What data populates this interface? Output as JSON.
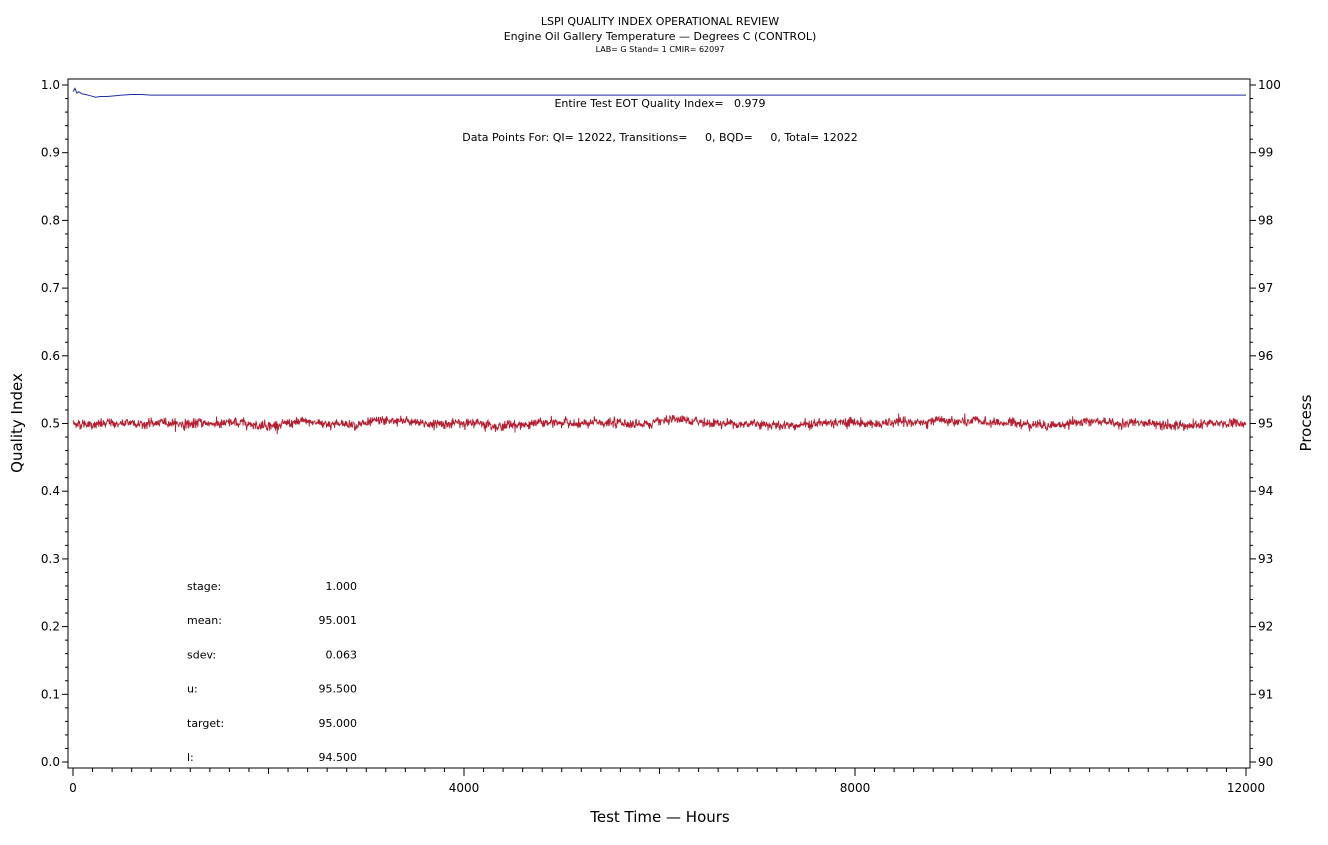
{
  "chart_data": {
    "type": "line",
    "title": "LSPI QUALITY INDEX OPERATIONAL REVIEW",
    "subtitle": "Engine Oil Gallery Temperature — Degrees C (CONTROL)",
    "subsubtitle": "LAB= G Stand= 1 CMIR= 62097",
    "xlabel": "Test Time — Hours",
    "ylabel_left": "Quality Index",
    "ylabel_right": "Process",
    "xlim": [
      0,
      12000
    ],
    "ylim_left": [
      0.0,
      1.0
    ],
    "ylim_right": [
      90,
      100
    ],
    "x_ticks": [
      "0",
      "4000",
      "8000",
      "12000"
    ],
    "y_left_ticks": [
      "0.0",
      "0.1",
      "0.2",
      "0.3",
      "0.4",
      "0.5",
      "0.6",
      "0.7",
      "0.8",
      "0.9",
      "1.0"
    ],
    "y_right_ticks": [
      "90",
      "91",
      "92",
      "93",
      "94",
      "95",
      "96",
      "97",
      "98",
      "99",
      "100"
    ],
    "annotations": {
      "quality_index": "Entire Test EOT Quality Index=   0.979",
      "data_points": "Data Points For: QI= 12022, Transitions=     0, BQD=     0, Total= 12022"
    },
    "stats": [
      {
        "label": "stage:",
        "value": "1.000"
      },
      {
        "label": "mean:",
        "value": "95.001"
      },
      {
        "label": "sdev:",
        "value": "0.063"
      },
      {
        "label": "u:",
        "value": "95.500"
      },
      {
        "label": "target:",
        "value": "95.000"
      },
      {
        "label": "l:",
        "value": "94.500"
      }
    ],
    "series": [
      {
        "axis": "left",
        "color": "#1f2fa8",
        "points": [
          [
            0,
            0.99
          ],
          [
            20,
            0.995
          ],
          [
            40,
            0.988
          ],
          [
            60,
            0.99
          ],
          [
            90,
            0.987
          ],
          [
            130,
            0.986
          ],
          [
            180,
            0.984
          ],
          [
            230,
            0.982
          ],
          [
            280,
            0.983
          ],
          [
            350,
            0.983
          ],
          [
            420,
            0.984
          ],
          [
            500,
            0.985
          ],
          [
            600,
            0.986
          ],
          [
            700,
            0.986
          ],
          [
            800,
            0.985
          ],
          [
            1500,
            0.985
          ],
          [
            3000,
            0.985
          ],
          [
            6000,
            0.985
          ],
          [
            9000,
            0.985
          ],
          [
            12000,
            0.985
          ]
        ]
      },
      {
        "axis": "right",
        "color": "#b51c2e",
        "mean": 95.001,
        "sdev": 0.063,
        "n_points": 12022
      }
    ]
  }
}
